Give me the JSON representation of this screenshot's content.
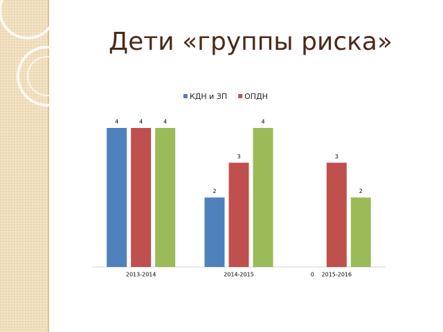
{
  "chart_data": {
    "type": "bar",
    "title": "Дети «группы риска»",
    "categories": [
      "2013-2014",
      "2014-2015",
      "2015-2016"
    ],
    "series": [
      {
        "name": "КДН и ЗП",
        "color": "#4f81bd",
        "values": [
          4,
          2,
          0
        ]
      },
      {
        "name": "ОПДН",
        "color": "#c0504d",
        "values": [
          4,
          3,
          3
        ]
      },
      {
        "color": "#9bbb59",
        "values": [
          4,
          4,
          2
        ]
      }
    ],
    "ylim": [
      0,
      4
    ],
    "legend": "top"
  }
}
